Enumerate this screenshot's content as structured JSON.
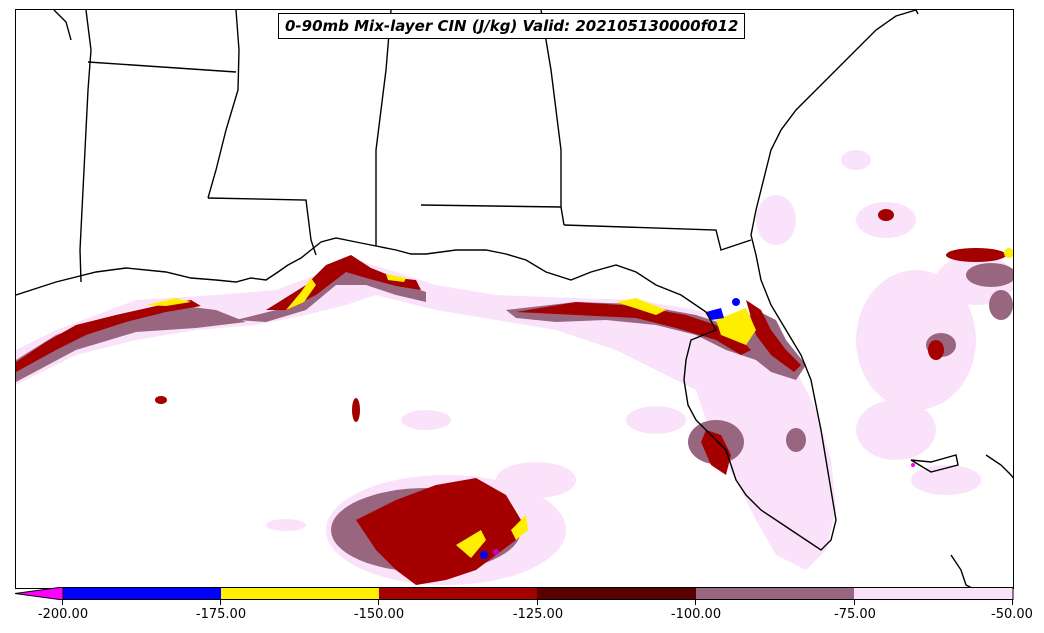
{
  "map": {
    "title": "0-90mb Mix-layer CIN (J/kg) Valid: 202105130000f012",
    "region": "Southeast US / Gulf of Mexico"
  },
  "legend": {
    "type": "colorbar",
    "extend": "min",
    "bins": [
      {
        "min": -225,
        "max": -200,
        "color": "#ff00ff"
      },
      {
        "min": -200,
        "max": -175,
        "color": "#0000ff"
      },
      {
        "min": -175,
        "max": -150,
        "color": "#ffee00"
      },
      {
        "min": -150,
        "max": -125,
        "color": "#a50000"
      },
      {
        "min": -125,
        "max": -100,
        "color": "#5a0000"
      },
      {
        "min": -100,
        "max": -75,
        "color": "#996680"
      },
      {
        "min": -75,
        "max": -50,
        "color": "#fae3fa"
      }
    ],
    "ticks": [
      "-200.00",
      "-175.00",
      "-150.00",
      "-125.00",
      "-100.00",
      "-75.00",
      "-50.00"
    ]
  }
}
